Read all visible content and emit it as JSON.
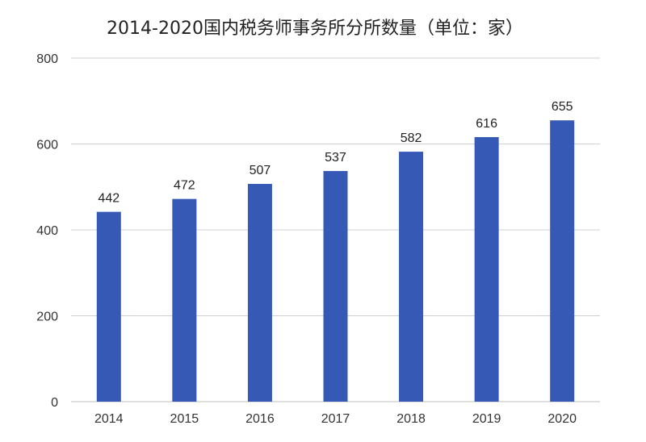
{
  "chart_data": {
    "type": "bar",
    "title": "2014-2020国内税务师事务所分所数量（单位：家）",
    "categories": [
      "2014",
      "2015",
      "2016",
      "2017",
      "2018",
      "2019",
      "2020"
    ],
    "values": [
      442,
      472,
      507,
      537,
      582,
      616,
      655
    ],
    "xlabel": "",
    "ylabel": "",
    "ylim": [
      0,
      800
    ],
    "yticks": [
      0,
      200,
      400,
      600,
      800
    ],
    "grid": true,
    "legend": "none",
    "bar_color": "#3559b5"
  }
}
